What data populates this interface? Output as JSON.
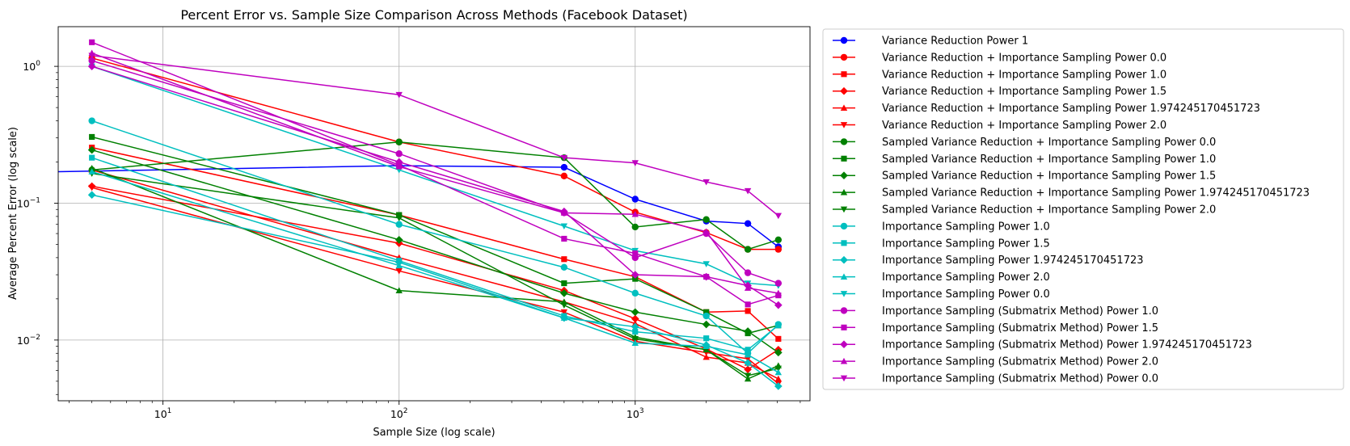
{
  "chart_data": {
    "type": "line",
    "title": "Percent Error vs. Sample Size Comparison Across Methods (Facebook Dataset)",
    "xlabel": "Sample Size (log scale)",
    "ylabel": "Average Percent Error (log scale)",
    "xscale": "log",
    "yscale": "log",
    "xlim": [
      3.6,
      5500
    ],
    "ylim": [
      0.0036,
      1.95
    ],
    "grid": true,
    "legend_placement": "outside-right",
    "x_ticks": [
      {
        "value": 10,
        "base": "10",
        "exp": "1"
      },
      {
        "value": 100,
        "base": "10",
        "exp": "2"
      },
      {
        "value": 1000,
        "base": "10",
        "exp": "3"
      }
    ],
    "y_ticks": [
      {
        "value": 0.01,
        "base": "10",
        "exp": "−2"
      },
      {
        "value": 0.1,
        "base": "10",
        "exp": "−1"
      },
      {
        "value": 1,
        "base": "10",
        "exp": "0"
      }
    ],
    "x": [
      5,
      100,
      500,
      1000,
      2000,
      3000,
      4039
    ],
    "series": [
      {
        "name": "Variance Reduction Power 1",
        "color": "#0000ff",
        "marker": "circle",
        "x": [
          3.6,
          100,
          500,
          1000,
          2000,
          3000,
          4039
        ],
        "values": [
          0.17,
          0.188,
          0.183,
          0.107,
          0.074,
          0.071,
          0.048
        ]
      },
      {
        "name": "Variance Reduction + Importance Sampling Power 0.0",
        "color": "#ff0000",
        "marker": "circle",
        "values": [
          1.15,
          0.28,
          0.158,
          0.086,
          0.061,
          0.046,
          0.046
        ]
      },
      {
        "name": "Variance Reduction + Importance Sampling Power 1.0",
        "color": "#ff0000",
        "marker": "square",
        "values": [
          0.255,
          0.082,
          0.039,
          0.029,
          0.016,
          0.0163,
          0.0102
        ]
      },
      {
        "name": "Variance Reduction + Importance Sampling Power 1.5",
        "color": "#ff0000",
        "marker": "diamond",
        "values": [
          0.133,
          0.051,
          0.023,
          0.0143,
          0.0086,
          0.0061,
          0.0085
        ]
      },
      {
        "name": "Variance Reduction + Importance Sampling Power 1.974245170451723",
        "color": "#ff0000",
        "marker": "triangle-up",
        "values": [
          0.175,
          0.04,
          0.019,
          0.0132,
          0.0075,
          0.0068,
          0.0052
        ]
      },
      {
        "name": "Variance Reduction + Importance Sampling Power 2.0",
        "color": "#ff0000",
        "marker": "triangle-down",
        "values": [
          0.13,
          0.032,
          0.016,
          0.0098,
          0.0081,
          0.0073,
          0.0048
        ]
      },
      {
        "name": "Sampled Variance Reduction + Importance Sampling Power 0.0",
        "color": "#008000",
        "marker": "circle",
        "values": [
          0.175,
          0.28,
          0.215,
          0.067,
          0.076,
          0.046,
          0.054
        ]
      },
      {
        "name": "Sampled Variance Reduction + Importance Sampling Power 1.0",
        "color": "#008000",
        "marker": "square",
        "values": [
          0.305,
          0.082,
          0.026,
          0.028,
          0.016,
          0.0112,
          0.0128
        ]
      },
      {
        "name": "Sampled Variance Reduction + Importance Sampling Power 1.5",
        "color": "#008000",
        "marker": "diamond",
        "values": [
          0.245,
          0.054,
          0.022,
          0.016,
          0.013,
          0.0116,
          0.0081
        ]
      },
      {
        "name": "Sampled Variance Reduction + Importance Sampling Power 1.974245170451723",
        "color": "#008000",
        "marker": "triangle-up",
        "values": [
          0.18,
          0.023,
          0.019,
          0.0105,
          0.0085,
          0.0052,
          0.0065
        ]
      },
      {
        "name": "Sampled Variance Reduction + Importance Sampling Power 2.0",
        "color": "#008000",
        "marker": "triangle-down",
        "values": [
          0.165,
          0.078,
          0.018,
          0.0102,
          0.0085,
          0.0055,
          0.0062
        ]
      },
      {
        "name": "Importance Sampling Power 1.0",
        "color": "#00bfbf",
        "marker": "circle",
        "values": [
          0.4,
          0.07,
          0.034,
          0.022,
          0.015,
          0.008,
          0.013
        ]
      },
      {
        "name": "Importance Sampling Power 1.5",
        "color": "#00bfbf",
        "marker": "square",
        "values": [
          0.215,
          0.038,
          0.015,
          0.0115,
          0.0103,
          0.0085,
          0.0128
        ]
      },
      {
        "name": "Importance Sampling Power 1.974245170451723",
        "color": "#00bfbf",
        "marker": "diamond",
        "values": [
          0.115,
          0.037,
          0.0145,
          0.0125,
          0.0092,
          0.0068,
          0.0046
        ]
      },
      {
        "name": "Importance Sampling Power 2.0",
        "color": "#00bfbf",
        "marker": "triangle-up",
        "values": [
          0.17,
          0.035,
          0.0145,
          0.0095,
          0.009,
          0.0078,
          0.0058
        ]
      },
      {
        "name": "Importance Sampling Power 0.0",
        "color": "#00bfbf",
        "marker": "triangle-down",
        "values": [
          1.0,
          0.175,
          0.068,
          0.045,
          0.036,
          0.026,
          0.025
        ]
      },
      {
        "name": "Importance Sampling (Submatrix Method) Power 1.0",
        "color": "#bf00bf",
        "marker": "circle",
        "values": [
          1.1,
          0.23,
          0.085,
          0.04,
          0.06,
          0.031,
          0.026
        ]
      },
      {
        "name": "Importance Sampling (Submatrix Method) Power 1.5",
        "color": "#bf00bf",
        "marker": "square",
        "values": [
          1.5,
          0.19,
          0.055,
          0.043,
          0.029,
          0.0182,
          0.0212
        ]
      },
      {
        "name": "Importance Sampling (Submatrix Method) Power 1.974245170451723",
        "color": "#bf00bf",
        "marker": "diamond",
        "values": [
          1.0,
          0.2,
          0.087,
          0.03,
          0.029,
          0.025,
          0.018
        ]
      },
      {
        "name": "Importance Sampling (Submatrix Method) Power 2.0",
        "color": "#bf00bf",
        "marker": "triangle-up",
        "values": [
          1.25,
          0.185,
          0.085,
          0.083,
          0.062,
          0.024,
          0.022
        ]
      },
      {
        "name": "Importance Sampling (Submatrix Method) Power 0.0",
        "color": "#bf00bf",
        "marker": "triangle-down",
        "values": [
          1.2,
          0.62,
          0.215,
          0.197,
          0.143,
          0.123,
          0.081
        ]
      }
    ]
  }
}
